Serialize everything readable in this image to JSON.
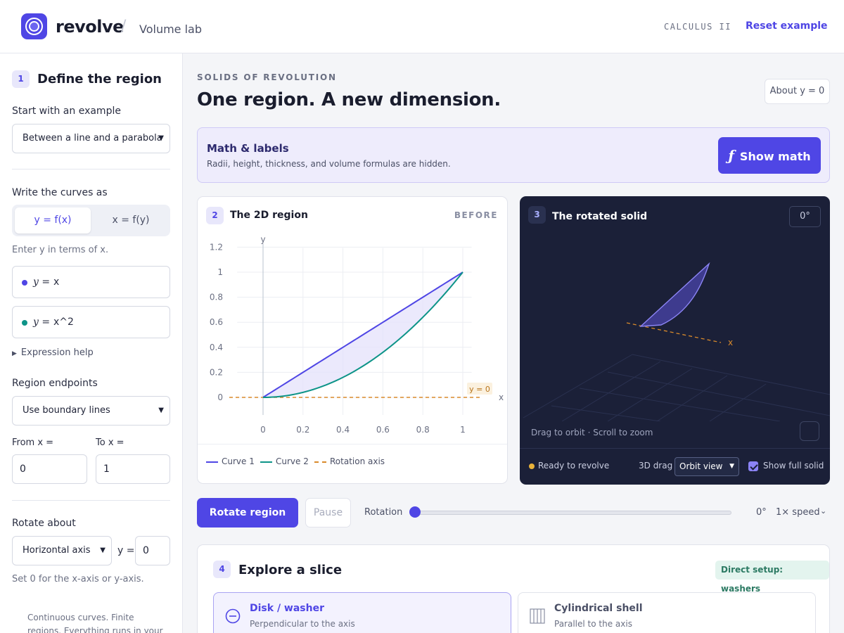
{
  "header": {
    "brand": "revolve",
    "separator": "/",
    "section": "Volume lab",
    "course": "CALCULUS II",
    "reset_label": "Reset example"
  },
  "sidebar": {
    "step_number": "1",
    "title": "Define the region",
    "example_label": "Start with an example",
    "example_value": "Between a line and a parabola",
    "curves_label": "Write the curves as",
    "mode_options": [
      "y = f(x)",
      "x = f(y)"
    ],
    "mode_selected": "y = f(x)",
    "mode_hint": "Enter y in terms of x.",
    "curves": [
      {
        "prefix": "y =",
        "expression": "x",
        "color": "#4f46e5"
      },
      {
        "prefix": "y =",
        "expression": "x^2",
        "color": "#0d9488"
      }
    ],
    "expression_help": "Expression help",
    "endpoints_label": "Region endpoints",
    "endpoints_value": "Use boundary lines",
    "from_label": "From x =",
    "from_value": "0",
    "to_label": "To x =",
    "to_value": "1",
    "rotate_label": "Rotate about",
    "rotate_axis_value": "Horizontal axis",
    "rotate_var_label": "y =",
    "rotate_at_value": "0",
    "rotate_hint": "Set 0 for the x-axis or y-axis.",
    "footer": "Continuous curves. Finite regions. Everything runs in your browser."
  },
  "main": {
    "kicker": "SOLIDS OF REVOLUTION",
    "headline": "One region. A new dimension.",
    "about_badge": "About y = 0",
    "math_banner": {
      "title": "Math & labels",
      "subtitle": "Radii, height, thickness, and volume formulas are hidden.",
      "button_symbol": "ƒ",
      "button_label": "Show math"
    },
    "region_card": {
      "step_number": "2",
      "title": "The 2D region",
      "tag": "BEFORE",
      "legend": [
        "Curve 1",
        "Curve 2",
        "Rotation axis"
      ]
    },
    "solid_card": {
      "step_number": "3",
      "title": "The rotated solid",
      "angle": "0°",
      "axis_label": "x",
      "drag_hint": "Drag to orbit · Scroll to zoom",
      "status": "Ready to revolve",
      "drag_label": "3D drag",
      "drag_mode": "Orbit view",
      "show_full_label": "Show full solid",
      "show_full_checked": true
    },
    "controls": {
      "rotate_button": "Rotate region",
      "pause_button": "Pause",
      "rotation_label": "Rotation",
      "rotation_value": "0°",
      "rotation_fraction": 0,
      "speed": "1× speed"
    },
    "explore": {
      "step_number": "4",
      "title": "Explore a slice",
      "badge": "Direct setup: washers",
      "methods": [
        {
          "title": "Disk / washer",
          "subtitle": "Perpendicular to the axis",
          "icon": "minus-circle-icon"
        },
        {
          "title": "Cylindrical shell",
          "subtitle": "Parallel to the axis",
          "icon": "vertical-bars-icon"
        }
      ],
      "selected_method": "Disk / washer"
    }
  },
  "chart_data": {
    "type": "line",
    "title": "",
    "xlabel": "x",
    "ylabel": "y",
    "xlim": [
      -0.2,
      1.15
    ],
    "ylim": [
      -0.1,
      1.25
    ],
    "xticks": [
      0,
      0.2,
      0.4,
      0.6,
      0.8,
      1
    ],
    "yticks": [
      0,
      0.2,
      0.4,
      0.6,
      0.8,
      1,
      1.2
    ],
    "grid": true,
    "legend_position": "bottom",
    "series": [
      {
        "name": "Curve 1",
        "color": "#4f46e5",
        "x": [
          0,
          0.25,
          0.5,
          0.75,
          1
        ],
        "y": [
          0,
          0.25,
          0.5,
          0.75,
          1
        ]
      },
      {
        "name": "Curve 2",
        "color": "#0d9488",
        "x": [
          0,
          0.25,
          0.5,
          0.75,
          1
        ],
        "y": [
          0,
          0.0625,
          0.25,
          0.5625,
          1
        ]
      },
      {
        "name": "Rotation axis",
        "color": "#d98a2b",
        "dashed": true,
        "x": [
          -0.2,
          1.15
        ],
        "y": [
          0,
          0
        ]
      }
    ],
    "annotations": [
      {
        "text": "y = 0",
        "x": 1.05,
        "y": 0.05
      }
    ],
    "shaded_region": {
      "between": [
        "Curve 1",
        "Curve 2"
      ],
      "x_from": 0,
      "x_to": 1,
      "color": "#e4e2fb"
    }
  }
}
